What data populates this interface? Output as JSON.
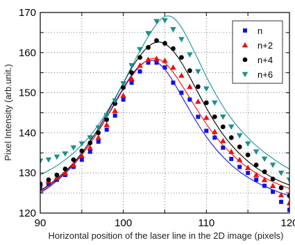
{
  "chart_data": {
    "type": "scatter",
    "title": "",
    "xlabel": "Horizontal position of the laser line in the 2D image (pixels)",
    "ylabel": "Pixel Intensity (arb.unit.)",
    "xlim": [
      90,
      120
    ],
    "ylim": [
      120,
      170
    ],
    "xticks": [
      90,
      100,
      110,
      120
    ],
    "yticks": [
      120,
      130,
      140,
      150,
      160,
      170
    ],
    "grid": true,
    "legend_position": "top-right",
    "series": [
      {
        "name": "n",
        "marker": "square",
        "color": "#1010ee",
        "x": [
          90,
          91,
          92,
          93,
          94,
          95,
          96,
          97,
          98,
          99,
          100,
          101,
          102,
          103,
          104,
          105,
          106,
          107,
          108,
          109,
          110,
          111,
          112,
          113,
          114,
          115,
          116,
          117,
          118,
          119,
          120
        ],
        "y": [
          126.3,
          127.3,
          128.3,
          129.5,
          131.5,
          133.3,
          135.3,
          137.8,
          140.8,
          144.3,
          148.3,
          152.5,
          155.3,
          157.5,
          157.5,
          156.3,
          152.5,
          150.0,
          148.3,
          144.0,
          140.5,
          138.8,
          136.3,
          133.5,
          131.5,
          130.0,
          128.3,
          126.8,
          125.3,
          122.8,
          120.8
        ],
        "fit": [
          125.0,
          126.4,
          128.0,
          129.9,
          132.0,
          134.5,
          137.3,
          140.5,
          144.0,
          147.6,
          151.2,
          154.4,
          156.8,
          158.0,
          157.7,
          155.8,
          152.8,
          149.2,
          145.6,
          142.1,
          139.0,
          136.3,
          134.0,
          132.0,
          130.3,
          128.9,
          127.7,
          126.7,
          125.8,
          125.0,
          124.3
        ]
      },
      {
        "name": "n+2",
        "marker": "triangle",
        "color": "#ee1010",
        "x": [
          90,
          91,
          92,
          93,
          94,
          95,
          96,
          97,
          98,
          99,
          100,
          101,
          102,
          103,
          104,
          105,
          106,
          107,
          108,
          109,
          110,
          111,
          112,
          113,
          114,
          115,
          116,
          117,
          118,
          119,
          120
        ],
        "y": [
          127.3,
          128.0,
          128.8,
          130.0,
          132.0,
          134.3,
          136.3,
          138.8,
          142.0,
          145.5,
          149.3,
          153.5,
          156.8,
          158.3,
          158.5,
          158.0,
          156.3,
          154.3,
          151.5,
          147.8,
          143.8,
          140.3,
          138.0,
          135.3,
          133.3,
          131.3,
          129.5,
          128.3,
          126.8,
          124.5,
          122.5
        ],
        "fit": [
          125.3,
          126.7,
          128.3,
          130.1,
          132.2,
          134.6,
          137.3,
          140.4,
          143.8,
          147.3,
          150.9,
          154.1,
          156.6,
          158.2,
          158.5,
          157.4,
          155.1,
          152.0,
          148.7,
          145.4,
          142.2,
          139.4,
          136.9,
          134.8,
          132.9,
          131.3,
          130.0,
          128.8,
          127.8,
          126.9,
          126.1
        ]
      },
      {
        "name": "n+4",
        "marker": "circle",
        "color": "#000000",
        "x": [
          90,
          91,
          92,
          93,
          94,
          95,
          96,
          97,
          98,
          99,
          100,
          101,
          102,
          103,
          104,
          105,
          106,
          107,
          108,
          109,
          110,
          111,
          112,
          113,
          114,
          115,
          116,
          117,
          118,
          119,
          120
        ],
        "y": [
          127.3,
          128.3,
          129.5,
          131.0,
          133.3,
          135.5,
          137.5,
          140.0,
          143.3,
          147.3,
          151.3,
          155.0,
          158.8,
          161.3,
          163.0,
          162.3,
          161.0,
          158.8,
          155.5,
          151.5,
          147.5,
          144.0,
          141.5,
          138.8,
          136.5,
          134.5,
          132.0,
          130.3,
          128.5,
          126.3,
          124.3
        ],
        "fit": [
          125.6,
          127.0,
          128.6,
          130.4,
          132.5,
          135.0,
          137.9,
          141.1,
          144.7,
          148.5,
          152.4,
          156.1,
          159.2,
          161.5,
          162.6,
          162.2,
          160.4,
          157.5,
          153.9,
          150.0,
          146.2,
          142.7,
          139.6,
          137.0,
          134.8,
          132.9,
          131.3,
          130.0,
          128.8,
          127.8,
          127.0
        ]
      },
      {
        "name": "n+6",
        "marker": "triangle-down",
        "color": "#1a9090",
        "x": [
          90,
          91,
          92,
          93,
          94,
          95,
          96,
          97,
          98,
          99,
          100,
          101,
          102,
          103,
          104,
          105,
          106,
          107,
          108,
          109,
          110,
          111,
          112,
          113,
          114,
          115,
          116,
          117,
          118,
          119,
          120
        ],
        "y": [
          133.0,
          133.3,
          134.0,
          134.8,
          136.3,
          137.3,
          138.8,
          141.3,
          144.3,
          148.0,
          152.3,
          156.8,
          160.8,
          164.8,
          167.8,
          168.0,
          165.8,
          163.3,
          159.5,
          155.3,
          151.0,
          147.5,
          144.0,
          141.5,
          139.3,
          137.3,
          135.3,
          133.5,
          132.0,
          130.0,
          128.3
        ],
        "fit": [
          129.5,
          130.6,
          131.8,
          133.3,
          135.0,
          137.0,
          139.3,
          142.0,
          145.2,
          148.7,
          152.5,
          156.5,
          160.4,
          164.0,
          167.1,
          169.0,
          168.7,
          166.3,
          162.5,
          158.3,
          154.0,
          150.1,
          146.6,
          143.6,
          141.0,
          138.8,
          136.8,
          135.1,
          133.6,
          132.2,
          131.0
        ]
      }
    ]
  }
}
